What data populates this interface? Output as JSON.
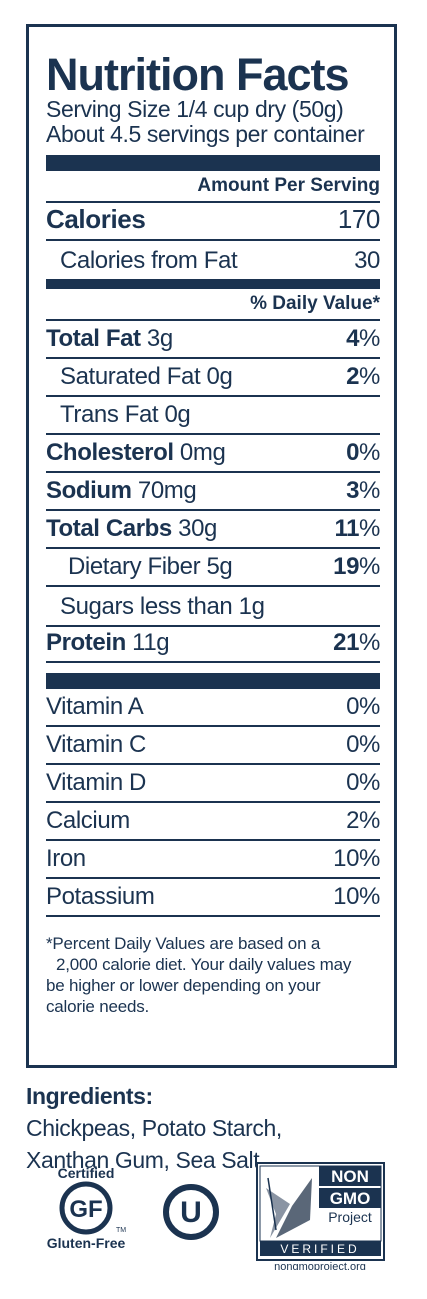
{
  "label": {
    "title": "Nutrition Facts",
    "serving_size": "Serving Size 1/4 cup dry (50g)",
    "servings_per_container": "About 4.5 servings per container",
    "amount_per_serving": "Amount Per Serving",
    "calories": {
      "label": "Calories",
      "value": "170"
    },
    "calories_from_fat": {
      "label": "Calories from Fat",
      "value": "30"
    },
    "daily_value_header": "% Daily Value*",
    "nutrients": [
      {
        "name": "Total Fat",
        "amount": "3g",
        "dv_num": "4",
        "dv_pct": "%"
      },
      {
        "name": "Saturated Fat",
        "amount": "0g",
        "dv_num": "2",
        "dv_pct": "%"
      },
      {
        "name": "Trans Fat",
        "amount": "0g"
      },
      {
        "name": "Cholesterol",
        "amount": "0mg",
        "dv_num": "0",
        "dv_pct": "%"
      },
      {
        "name": "Sodium",
        "amount": "70mg",
        "dv_num": "3",
        "dv_pct": "%"
      },
      {
        "name": "Total Carbs",
        "amount": "30g",
        "dv_num": "11",
        "dv_pct": "%"
      },
      {
        "name": "Dietary Fiber",
        "amount": "5g",
        "dv_num": "19",
        "dv_pct": "%"
      },
      {
        "name": "Sugars less than",
        "amount": "1g"
      },
      {
        "name": "Protein",
        "amount": "11g",
        "dv_num": "21",
        "dv_pct": "%"
      }
    ],
    "vitamins": [
      {
        "name": "Vitamin A",
        "value": "0%"
      },
      {
        "name": "Vitamin C",
        "value": "0%"
      },
      {
        "name": "Vitamin D",
        "value": "0%"
      },
      {
        "name": "Calcium",
        "value": "2%"
      },
      {
        "name": "Iron",
        "value": "10%"
      },
      {
        "name": "Potassium",
        "value": "10%"
      }
    ],
    "footnote_lines": [
      "*Percent Daily Values are based on a",
      "2,000 calorie diet. Your daily values may",
      "be higher or lower depending on your",
      "calorie needs."
    ]
  },
  "ingredients": {
    "heading": "Ingredients:",
    "line1": "Chickpeas, Potato Starch,",
    "line2": "Xanthan Gum, Sea Salt"
  },
  "logos": {
    "gluten_free": {
      "top": "Certified",
      "mark": "GF",
      "tm": "TM",
      "bottom": "Gluten-Free",
      "icon": "certified-gluten-free-icon"
    },
    "kosher": {
      "mark": "U",
      "icon": "kosher-ou-icon"
    },
    "non_gmo": {
      "line1": "NON",
      "line2": "GMO",
      "line3": "Project",
      "verified": "VERIFIED",
      "url": "nongmoproject.org",
      "icon": "butterfly-icon"
    }
  },
  "colors": {
    "ink": "#1b3350",
    "background": "#ffffff"
  }
}
